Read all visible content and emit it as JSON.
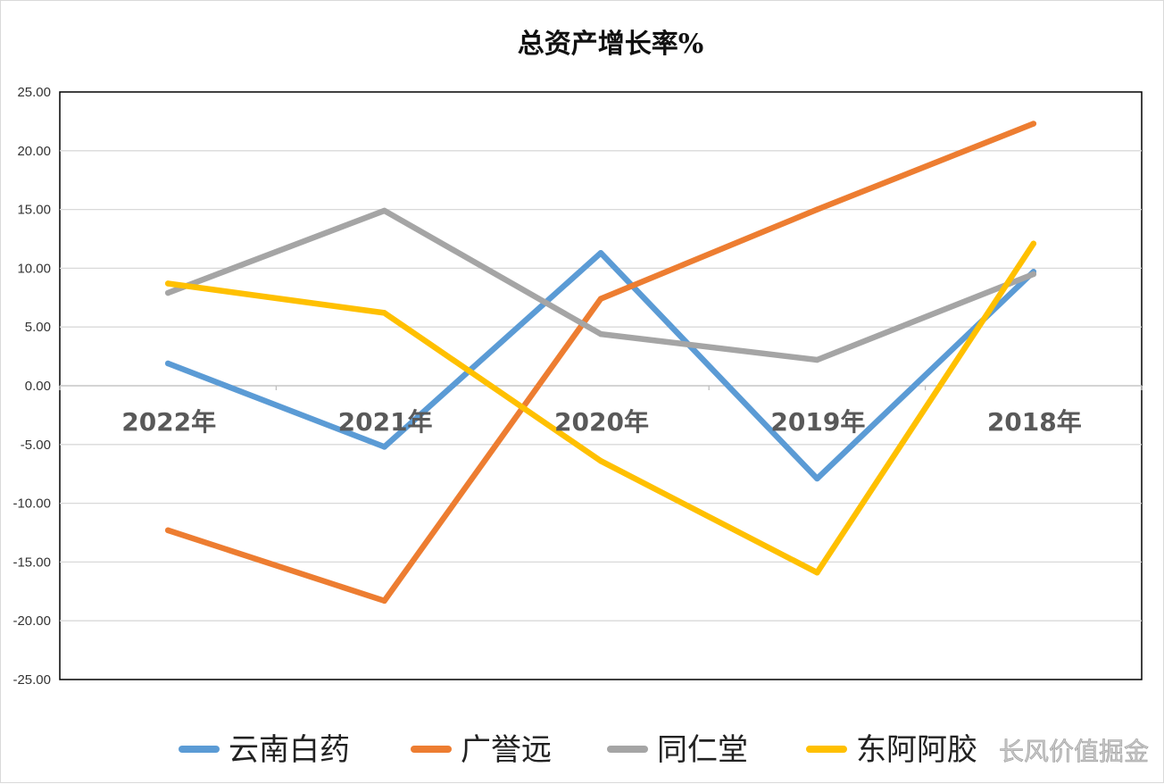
{
  "chart_data": {
    "type": "line",
    "title": "总资产增长率%",
    "xlabel": "",
    "ylabel": "",
    "categories": [
      "2022年",
      "2021年",
      "2020年",
      "2019年",
      "2018年"
    ],
    "ylim": [
      -25,
      25
    ],
    "ytick_step": 5,
    "ytick_labels": [
      "25.00",
      "20.00",
      "15.00",
      "10.00",
      "5.00",
      "0.00",
      "-5.00",
      "-10.00",
      "-15.00",
      "-20.00",
      "-25.00"
    ],
    "grid": true,
    "legend_position": "bottom",
    "series": [
      {
        "name": "云南白药",
        "color": "#5b9bd5",
        "values": [
          1.9,
          -5.2,
          11.3,
          -7.9,
          9.7
        ]
      },
      {
        "name": "广誉远",
        "color": "#ed7d31",
        "values": [
          -12.3,
          -18.3,
          7.4,
          15.0,
          22.3
        ]
      },
      {
        "name": "同仁堂",
        "color": "#a5a5a5",
        "values": [
          7.9,
          14.9,
          4.4,
          2.2,
          9.5
        ]
      },
      {
        "name": "东阿阿胶",
        "color": "#ffc000",
        "values": [
          8.7,
          6.2,
          -6.4,
          -15.9,
          12.1
        ]
      }
    ]
  },
  "watermark": "长风价值掘金"
}
